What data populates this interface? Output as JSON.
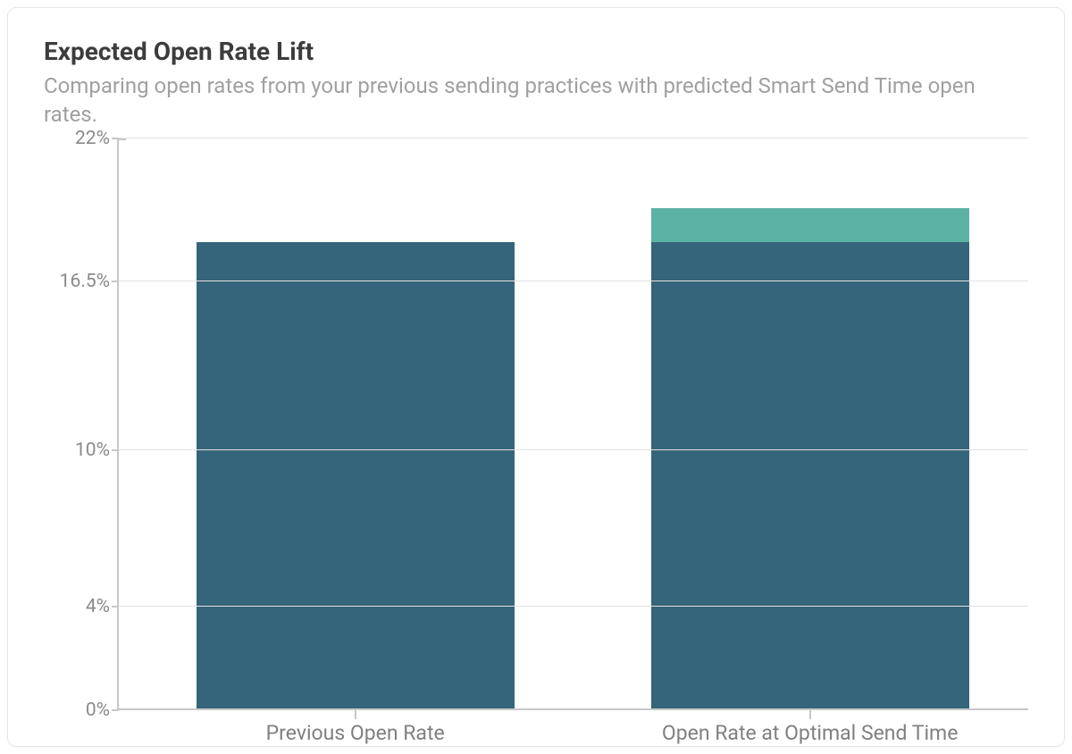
{
  "card": {
    "title": "Expected Open Rate Lift",
    "subtitle": "Comparing open rates from your previous sending practices with predicted Smart Send Time open rates."
  },
  "chart": {
    "type": "bar-stacked",
    "y_axis": {
      "min": 0,
      "max": 22,
      "ticks": [
        0,
        4,
        10,
        16.5,
        22
      ],
      "tick_labels": [
        "0%",
        "4%",
        "10%",
        "16.5%",
        "22%"
      ],
      "label_fontsize": 21,
      "label_color": "#8a8a8a"
    },
    "gridline_color": "#e2e2e2",
    "axis_color": "#c8c8c8",
    "background_color": "#ffffff",
    "bar_width_pct": 35,
    "bars": [
      {
        "label": "Previous Open Rate",
        "center_pct": 26,
        "segments": [
          {
            "value": 18.0,
            "color": "#35657a"
          }
        ]
      },
      {
        "label": "Open Rate at Optimal Send Time",
        "center_pct": 76,
        "segments": [
          {
            "value": 18.0,
            "color": "#35657a"
          },
          {
            "value": 1.3,
            "color": "#5cb2a4"
          }
        ]
      }
    ],
    "x_label_fontsize": 23,
    "x_label_color": "#808080",
    "title_color": "#3c3c3c",
    "title_fontsize": 28,
    "subtitle_color": "#a0a0a0",
    "subtitle_fontsize": 24
  }
}
